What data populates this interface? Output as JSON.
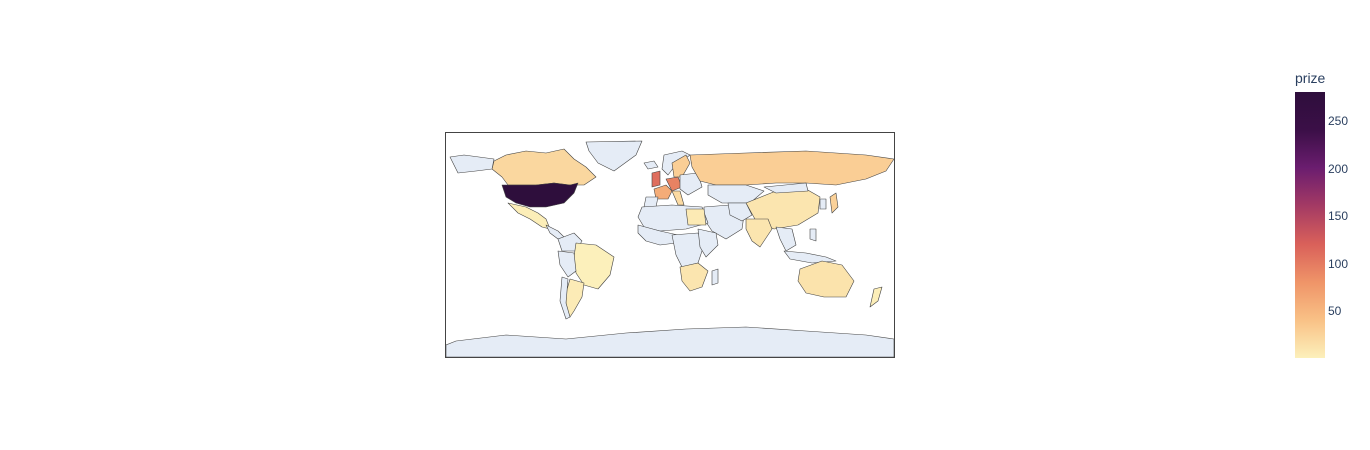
{
  "colorbar": {
    "title": "prize",
    "ticks": [
      "250",
      "200",
      "150",
      "100",
      "50"
    ],
    "range": [
      1,
      281
    ],
    "colorscale": [
      "#fcf0bb",
      "#f9c186",
      "#ef9468",
      "#d9605a",
      "#a43a64",
      "#6b1d6f",
      "#3b0f47",
      "#2e0e3c"
    ]
  },
  "map": {
    "projection": "equirectangular",
    "land_no_data_color": "#e5ecf6",
    "border_color": "#444444"
  },
  "chart_data": {
    "type": "choropleth",
    "colorbar_title": "prize",
    "zmin": 1,
    "zmax": 281,
    "regions": [
      {
        "name": "United States",
        "value": 281
      },
      {
        "name": "United Kingdom",
        "value": 110
      },
      {
        "name": "Germany",
        "value": 95
      },
      {
        "name": "France",
        "value": 60
      },
      {
        "name": "Sweden",
        "value": 30
      },
      {
        "name": "Russia",
        "value": 30
      },
      {
        "name": "Canada",
        "value": 22
      },
      {
        "name": "Japan",
        "value": 27
      },
      {
        "name": "Switzerland",
        "value": 25
      },
      {
        "name": "Netherlands",
        "value": 18
      },
      {
        "name": "Italy",
        "value": 20
      },
      {
        "name": "Australia",
        "value": 12
      },
      {
        "name": "China",
        "value": 10
      },
      {
        "name": "India",
        "value": 10
      },
      {
        "name": "Argentina",
        "value": 5
      },
      {
        "name": "Brazil",
        "value": 1
      },
      {
        "name": "Mexico",
        "value": 3
      },
      {
        "name": "Egypt",
        "value": 6
      },
      {
        "name": "South Africa",
        "value": 10
      },
      {
        "name": "New Zealand",
        "value": 3
      }
    ]
  }
}
